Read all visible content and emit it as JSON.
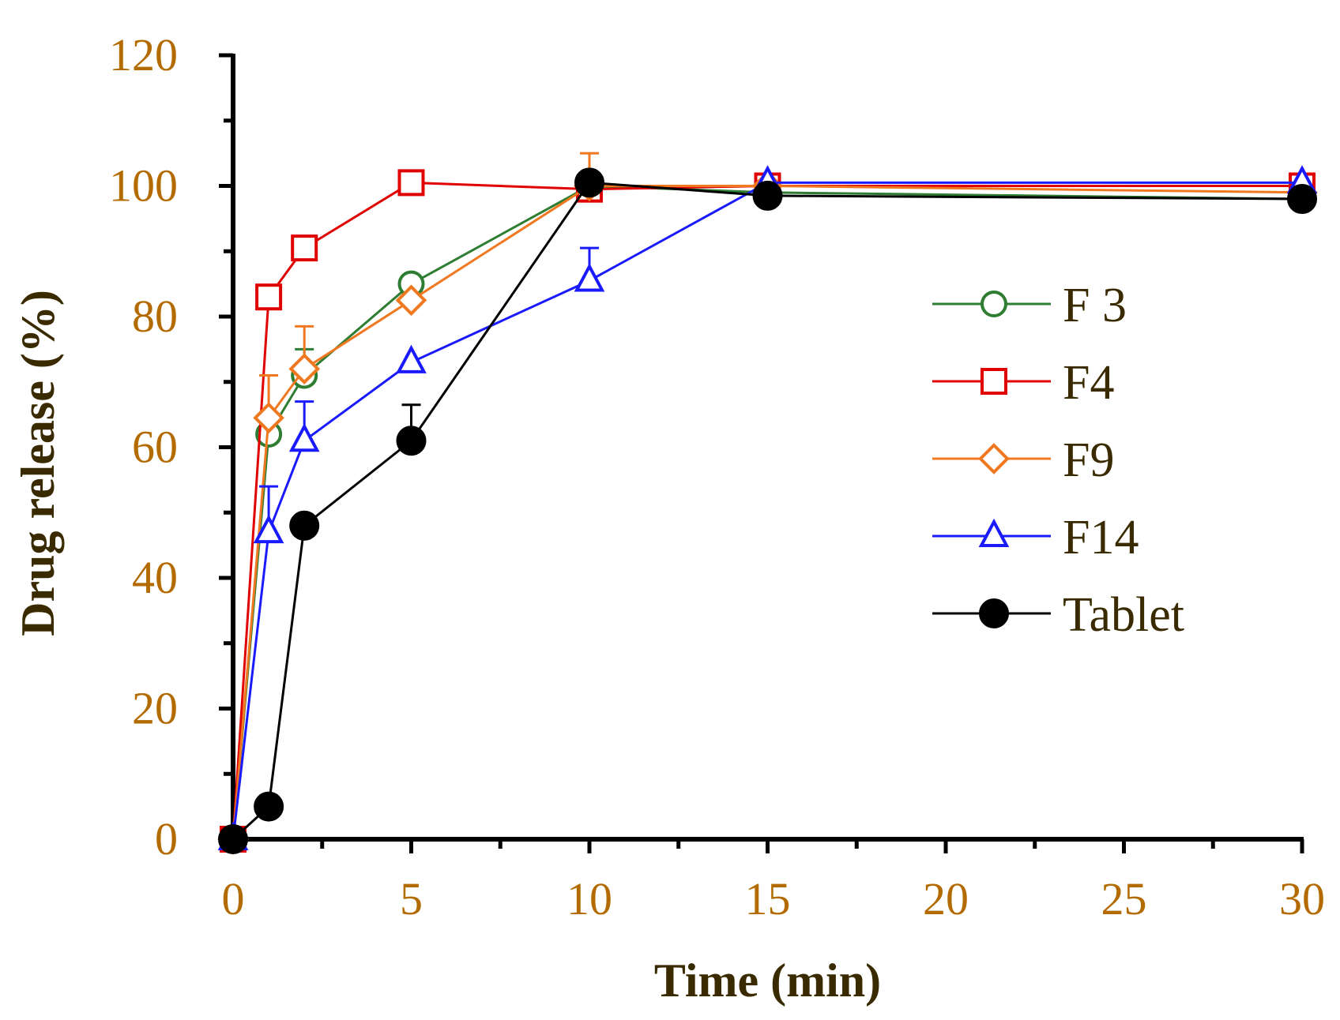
{
  "chart_data": {
    "type": "line",
    "xlabel": "Time (min)",
    "ylabel": "Drug release (%)",
    "xlim": [
      0,
      30
    ],
    "ylim": [
      0,
      120
    ],
    "xticks": [
      0,
      5,
      10,
      15,
      20,
      25,
      30
    ],
    "yticks": [
      0,
      20,
      40,
      60,
      80,
      100,
      120
    ],
    "grid": false,
    "legend_position": "right",
    "series": [
      {
        "name": "F 3",
        "color": "#2e7d32",
        "marker": "circle-open",
        "x": [
          0,
          1,
          2,
          5,
          10,
          15,
          30
        ],
        "y": [
          0,
          62,
          71,
          85,
          100,
          99,
          98
        ],
        "error": [
          0,
          0,
          4,
          0,
          0,
          0,
          0
        ]
      },
      {
        "name": "F4",
        "color": "#e00000",
        "marker": "square-open",
        "x": [
          0,
          1,
          2,
          5,
          10,
          15,
          30
        ],
        "y": [
          0,
          83,
          90.5,
          100.5,
          99.5,
          100,
          100
        ],
        "error": [
          0,
          0,
          0,
          0,
          0,
          0,
          0
        ]
      },
      {
        "name": "F9",
        "color": "#f07820",
        "marker": "diamond-open",
        "x": [
          0,
          1,
          2,
          5,
          10,
          15,
          30
        ],
        "y": [
          0,
          64.5,
          72,
          82.5,
          100,
          100,
          99
        ],
        "error": [
          0,
          6.5,
          6.5,
          0,
          5,
          0,
          0
        ]
      },
      {
        "name": "F14",
        "color": "#1a1aff",
        "marker": "triangle-open",
        "x": [
          0,
          1,
          2,
          5,
          10,
          15,
          30
        ],
        "y": [
          0,
          47,
          61,
          73,
          85.5,
          100.5,
          100.5
        ],
        "error": [
          0,
          7,
          6,
          0,
          5,
          0,
          0
        ]
      },
      {
        "name": "Tablet",
        "color": "#000000",
        "marker": "circle-filled",
        "x": [
          0,
          1,
          2,
          5,
          10,
          15,
          30
        ],
        "y": [
          0,
          5,
          48,
          61,
          100.5,
          98.5,
          98
        ],
        "error": [
          0,
          0,
          0,
          5.5,
          0,
          0,
          0
        ]
      }
    ]
  }
}
